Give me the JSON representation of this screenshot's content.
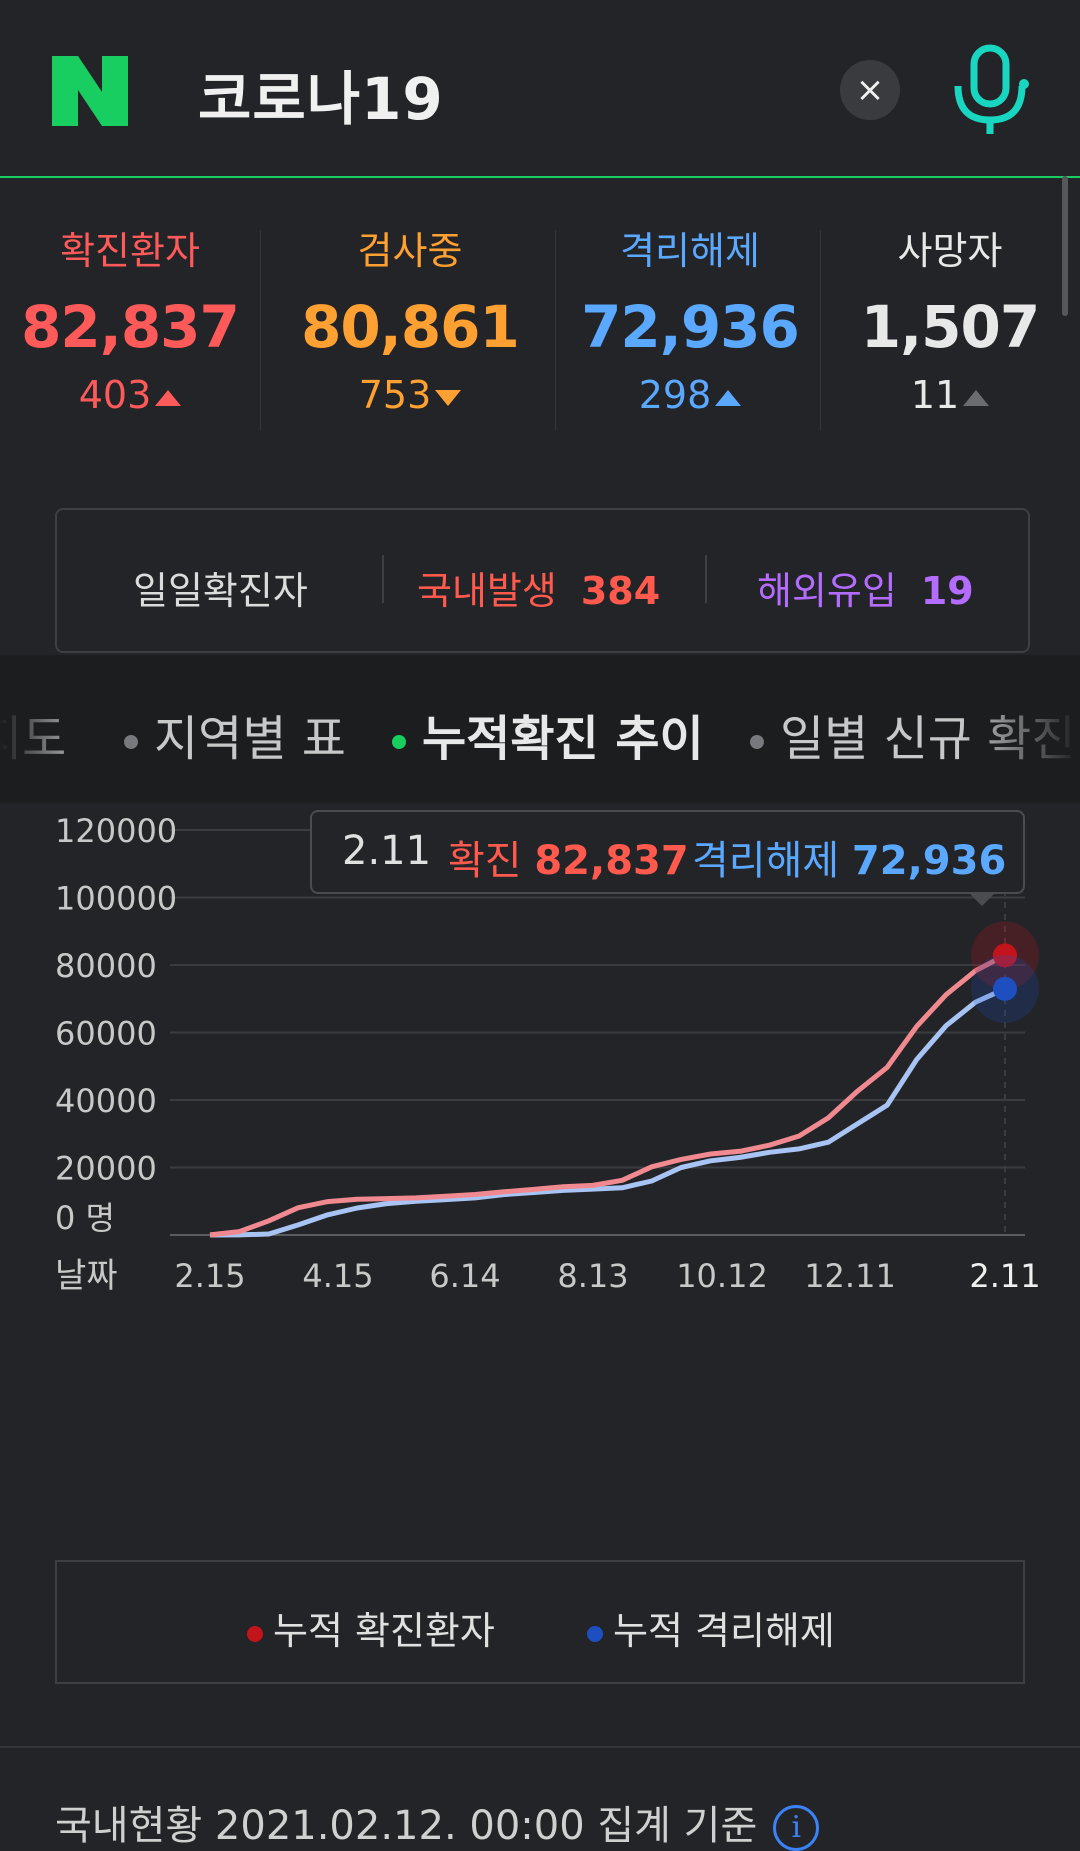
{
  "header": {
    "query": "코로나19",
    "clear_label": "×"
  },
  "stats": [
    {
      "label": "확진환자",
      "value": "82,837",
      "delta": "403",
      "direction": "up",
      "color": "#ff5a5a"
    },
    {
      "label": "검사중",
      "value": "80,861",
      "delta": "753",
      "direction": "down",
      "color": "#ffa032"
    },
    {
      "label": "격리해제",
      "value": "72,936",
      "delta": "298",
      "direction": "up",
      "color": "#5aa8ff"
    },
    {
      "label": "사망자",
      "value": "1,507",
      "delta": "11",
      "direction": "up",
      "color": "#e8e8e8"
    }
  ],
  "daily": {
    "title": "일일확진자",
    "domestic_label": "국내발생",
    "domestic_value": "384",
    "overseas_label": "해외유입",
    "overseas_value": "19"
  },
  "tabs": [
    "지도",
    "지역별 표",
    "누적확진 추이",
    "일별 신규 확진"
  ],
  "active_tab": 2,
  "tooltip": {
    "date": "2.11",
    "confirmed_label": "확진",
    "confirmed_value": "82,837",
    "released_label": "격리해제",
    "released_value": "72,936"
  },
  "chart_data": {
    "type": "line",
    "x": [
      "2.15",
      "2.25",
      "3.1",
      "3.15",
      "4.1",
      "4.15",
      "5.1",
      "5.15",
      "6.1",
      "6.14",
      "7.1",
      "7.15",
      "8.1",
      "8.13",
      "8.20",
      "9.1",
      "9.15",
      "10.1",
      "10.12",
      "11.1",
      "11.15",
      "12.1",
      "12.11",
      "12.20",
      "1.1",
      "1.15",
      "2.1",
      "2.11"
    ],
    "series": [
      {
        "name": "누적 확진환자",
        "color": "#f08a90",
        "values": [
          28,
          1000,
          4200,
          8100,
          9900,
          10600,
          10800,
          11000,
          11500,
          12000,
          12800,
          13500,
          14300,
          14700,
          16200,
          20200,
          22400,
          24000,
          24800,
          26600,
          29300,
          34700,
          42700,
          49700,
          61800,
          71200,
          78300,
          82837
        ]
      },
      {
        "name": "누적 격리해제",
        "color": "#a8c4f4",
        "values": [
          10,
          20,
          300,
          3000,
          6000,
          8000,
          9300,
          10000,
          10500,
          11000,
          12000,
          12600,
          13200,
          13600,
          14000,
          16000,
          20000,
          22000,
          23000,
          24500,
          25500,
          27500,
          33000,
          38500,
          52000,
          62000,
          69000,
          72936
        ]
      }
    ],
    "y_ticks": [
      "120000",
      "100000",
      "80000",
      "60000",
      "40000",
      "20000",
      "0 명"
    ],
    "x_ticks": [
      "2.15",
      "4.15",
      "6.14",
      "8.13",
      "10.12",
      "12.11",
      "2.11"
    ],
    "x_axis_label": "날짜",
    "ylim": [
      0,
      120000
    ],
    "grid": true,
    "markers": [
      {
        "series": 0,
        "color": "#c4141b"
      },
      {
        "series": 1,
        "color": "#1d4fc0"
      }
    ]
  },
  "legend": [
    {
      "label": "누적 확진환자",
      "color": "#c4141b"
    },
    {
      "label": "누적 격리해제",
      "color": "#1d4fc0"
    }
  ],
  "footer": {
    "text": "국내현황 2021.02.12. 00:00 집계 기준"
  }
}
